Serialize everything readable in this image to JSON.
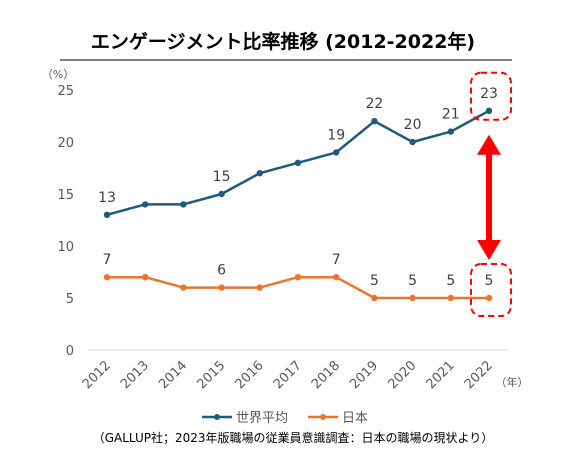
{
  "chart_data": {
    "type": "line",
    "title": "エンゲージメント比率推移 (2012-2022年)",
    "y_unit": "（%）",
    "x_unit": "（年）",
    "ylim": [
      0,
      25
    ],
    "yticks": [
      "0",
      "5",
      "10",
      "15",
      "20",
      "25"
    ],
    "categories": [
      "2012",
      "2013",
      "2014",
      "2015",
      "2016",
      "2017",
      "2018",
      "2019",
      "2020",
      "2021",
      "2022"
    ],
    "series": [
      {
        "name": "世界平均",
        "color": "#1f5b7a",
        "values": [
          13,
          14,
          14,
          15,
          17,
          18,
          19,
          22,
          20,
          21,
          23
        ],
        "labels": [
          "13",
          "",
          "",
          "15",
          "",
          "",
          "19",
          "22",
          "20",
          "21",
          "23"
        ]
      },
      {
        "name": "日本",
        "color": "#e8762c",
        "values": [
          7,
          7,
          6,
          6,
          6,
          7,
          7,
          5,
          5,
          5,
          5
        ],
        "labels": [
          "7",
          "",
          "",
          "6",
          "",
          "",
          "7",
          "5",
          "5",
          "5",
          "5"
        ]
      }
    ],
    "grid": false,
    "legend": "bottom",
    "highlight_color": "#ff0000",
    "source": "（GALLUP社；2023年版職場の従業員意識調査：日本の職場の現状より）"
  }
}
